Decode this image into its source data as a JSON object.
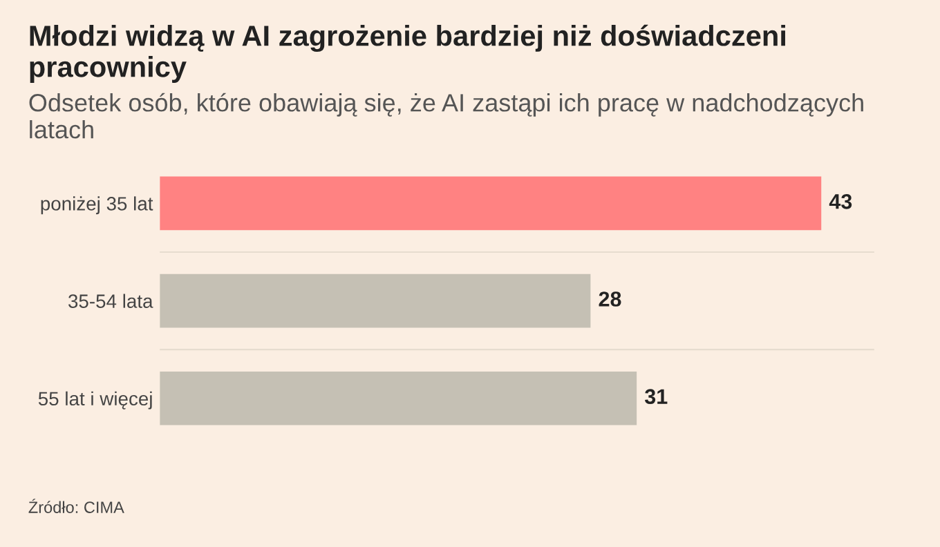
{
  "chart_data": {
    "type": "bar",
    "orientation": "horizontal",
    "title": "Młodzi widzą w AI zagrożenie bardziej niż doświadczeni pracownicy",
    "subtitle": "Odsetek osób, które obawiają się, że AI zastąpi ich pracę w nadchodzących latach",
    "categories": [
      "poniżej 35 lat",
      "35-54 lata",
      "55 lat i więcej"
    ],
    "values": [
      43,
      28,
      31
    ],
    "colors": [
      "#ff8282",
      "#c5c0b4",
      "#c5c0b4"
    ],
    "data_labels": true,
    "annotations": [
      "Źródło: CIMA"
    ]
  }
}
